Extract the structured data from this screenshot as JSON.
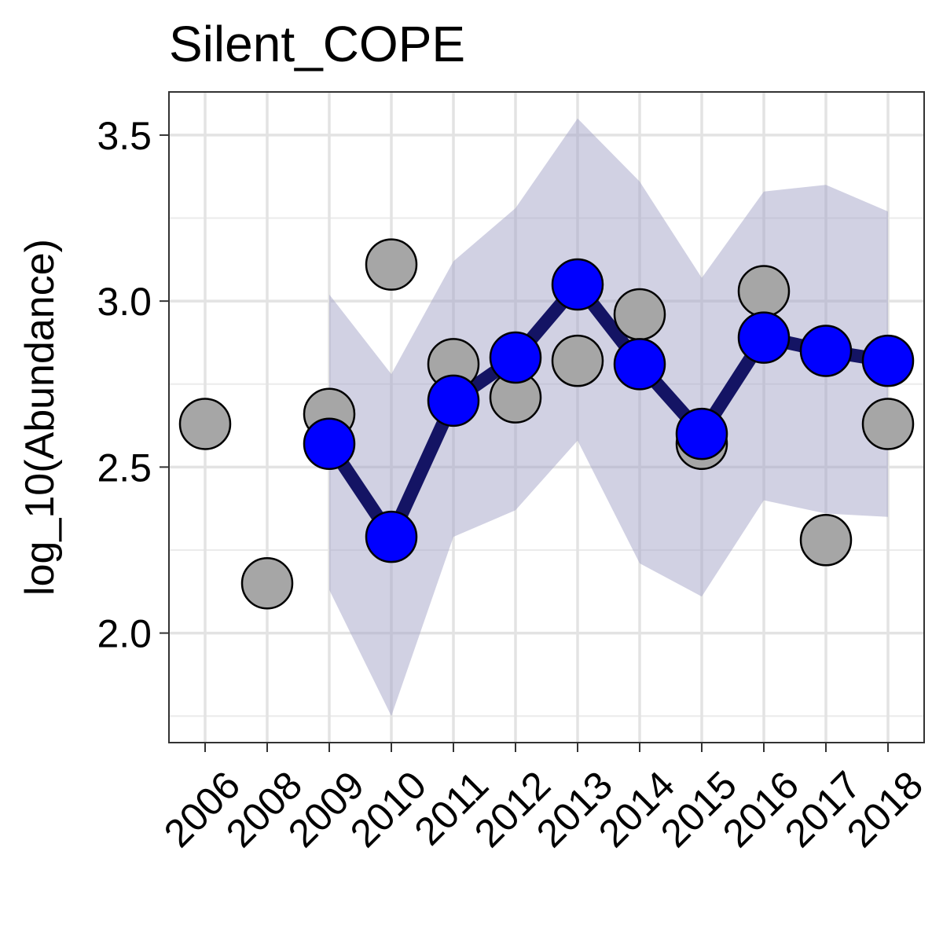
{
  "chart_data": {
    "type": "line",
    "title": "Silent_COPE",
    "xlabel": "",
    "ylabel": "log_10(Abundance)",
    "categories": [
      "2006",
      "2008",
      "2009",
      "2010",
      "2011",
      "2012",
      "2013",
      "2014",
      "2015",
      "2016",
      "2017",
      "2018"
    ],
    "ylim": [
      1.67,
      3.63
    ],
    "y_ticks": [
      2.0,
      2.5,
      3.0,
      3.5
    ],
    "y_tick_labels": [
      "2.0",
      "2.5",
      "3.0",
      "3.5"
    ],
    "grid": true,
    "series": [
      {
        "kind": "observed_points",
        "values": [
          2.63,
          2.15,
          2.66,
          3.11,
          2.81,
          2.71,
          2.82,
          2.96,
          2.57,
          3.03,
          2.28,
          2.63
        ],
        "color": "#a6a6a6"
      },
      {
        "kind": "estimate_line",
        "values": [
          null,
          null,
          2.57,
          2.29,
          2.7,
          2.83,
          3.05,
          2.81,
          2.6,
          2.89,
          2.85,
          2.82
        ],
        "point_color": "#0000ff",
        "line_color": "#141464"
      },
      {
        "kind": "confidence_band",
        "lower": [
          null,
          null,
          2.13,
          1.75,
          2.29,
          2.37,
          2.58,
          2.21,
          2.11,
          2.4,
          2.36,
          2.35
        ],
        "upper": [
          null,
          null,
          3.02,
          2.78,
          3.12,
          3.28,
          3.55,
          3.36,
          3.07,
          3.33,
          3.35,
          3.27
        ],
        "color": "#a3a3c8"
      }
    ]
  }
}
